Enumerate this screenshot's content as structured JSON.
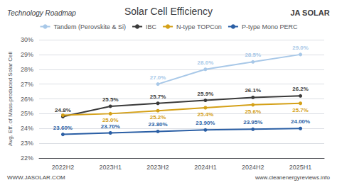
{
  "chart_data": {
    "type": "line",
    "title": "Solar Cell Efficiency",
    "subtitle": "Technology Roadmap",
    "annotations": [
      "JA SOLAR",
      "WWW.JASOLAR.COM",
      "www.cleanenergyreviews.info"
    ],
    "ylabel": "Avg. Eff. of Mass-produced Solar Cell",
    "categories": [
      "2022H2",
      "2023H1",
      "2023H2",
      "2024H1",
      "2024H2",
      "2025H1"
    ],
    "ylim": [
      22,
      30
    ],
    "yticks": [
      {
        "value": 22,
        "label": "22%"
      },
      {
        "value": 23,
        "label": "23%"
      },
      {
        "value": 24,
        "label": "24%"
      },
      {
        "value": 25,
        "label": "25%"
      },
      {
        "value": 26,
        "label": "26%"
      },
      {
        "value": 27,
        "label": "27%"
      },
      {
        "value": 28,
        "label": "28%"
      },
      {
        "value": 29,
        "label": "29%"
      },
      {
        "value": 30,
        "label": "30%"
      }
    ],
    "grid": true,
    "legend": "top",
    "data_labels": true,
    "marker": "circle",
    "series": [
      {
        "name": "Tandem (Perovskite & Si)",
        "color": "#a8c8e8",
        "values": [
          null,
          null,
          27.0,
          28.0,
          28.5,
          29.0
        ],
        "value_labels": [
          null,
          null,
          "27.0%",
          "28.0%",
          "28.5%",
          "29.0%"
        ]
      },
      {
        "name": "IBC",
        "color": "#3a3a3a",
        "values": [
          24.8,
          25.5,
          25.7,
          25.9,
          26.1,
          26.2
        ],
        "value_labels": [
          "24.8%",
          "25.5%",
          "25.7%",
          "25.9%",
          "26.1%",
          "26.2%"
        ]
      },
      {
        "name": "N-type TOPCon",
        "color": "#d4a017",
        "values": [
          24.9,
          25.0,
          25.2,
          25.4,
          25.6,
          25.7
        ],
        "value_labels": [
          null,
          "25.0%",
          "25.2%",
          "25.4%",
          "25.6%",
          "25.7%"
        ]
      },
      {
        "name": "P-type Mono PERC",
        "color": "#2b5fa5",
        "values": [
          23.6,
          23.7,
          23.8,
          23.9,
          23.95,
          24.0
        ],
        "value_labels": [
          "23.60%",
          "23.70%",
          "23.80%",
          "23.90%",
          "23.95%",
          "24.00%"
        ]
      }
    ]
  }
}
